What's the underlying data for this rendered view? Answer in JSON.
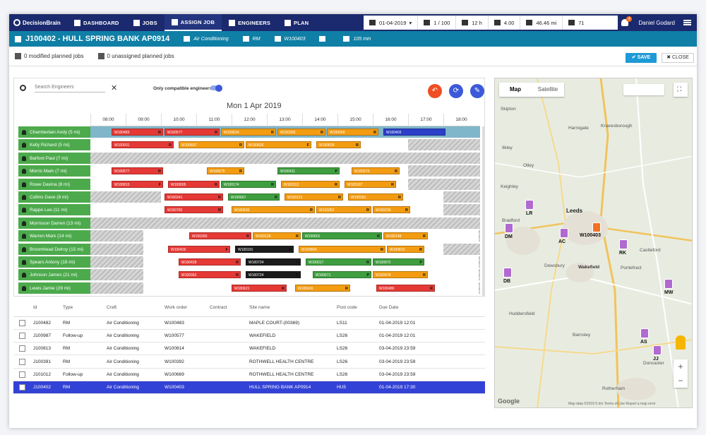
{
  "nav": {
    "logo": "DecisionBrain",
    "items": [
      {
        "label": "DASHBOARD",
        "icon": "grid-icon"
      },
      {
        "label": "JOBS",
        "icon": "wrench-icon"
      },
      {
        "label": "ASSIGN JOB",
        "icon": "person-badge-icon",
        "active": true
      },
      {
        "label": "ENGINEERS",
        "icon": "people-icon"
      },
      {
        "label": "PLAN",
        "icon": "document-icon"
      }
    ],
    "kpis": {
      "date": "01-04-2019",
      "pages": "1 / 100",
      "hours": "12 h",
      "tools": "4.00",
      "distance": "46.46 mi",
      "alerts": "71"
    },
    "notifications": "4",
    "user": "Daniel Godard"
  },
  "job": {
    "title": "J100402 - HULL SPRING BANK AP0914",
    "craft": "Air Conditioning",
    "type": "RM",
    "work_order": "W100403",
    "duration": "105 min"
  },
  "actions": {
    "modified": "0 modified planned jobs",
    "unassigned": "0 unassigned planned jobs",
    "save": "SAVE",
    "close": "CLOSE"
  },
  "gantt": {
    "search_placeholder": "Search Engineers",
    "compatible_label": "Only compatible engineers",
    "date": "Mon 1 Apr 2019",
    "hours": [
      "08:00",
      "09:00",
      "10:00",
      "11:00",
      "12:00",
      "13:00",
      "14:00",
      "15:00",
      "16:00",
      "17:00",
      "18:00"
    ],
    "engineers": [
      "Chamberlain Andy (5 mi)",
      "Kelly Richard (5 mi)",
      "Barfoot Paul (7 mi)",
      "Morris Mark (7 mi)",
      "Rowe Davina (8 mi)",
      "Collins Dave (8 mi)",
      "Rappe Lee (11 mi)",
      "Morrisson Darren (13 mi)",
      "Warren Mark (14 mi)",
      "Broomhead Delroy (15 mi)",
      "Spears Antony (18 mi)",
      "Johnson James (21 mi)",
      "Lewis Jamie (29 mi)"
    ],
    "tasks": [
      [
        {
          "s": 8.1,
          "e": 9.6,
          "c": "red",
          "t": "W100483",
          "k": "R"
        },
        {
          "s": 9.6,
          "e": 11.2,
          "c": "red",
          "t": "W100577",
          "k": "R"
        },
        {
          "s": 11.2,
          "e": 12.8,
          "c": "orange",
          "t": "W100814",
          "k": "R"
        },
        {
          "s": 12.8,
          "e": 14.2,
          "c": "orange",
          "t": "W100392",
          "k": "R"
        },
        {
          "s": 14.2,
          "e": 15.7,
          "c": "orange",
          "t": "W100669",
          "k": "R"
        },
        {
          "s": 15.8,
          "e": 17.6,
          "c": "blue",
          "t": "W100403",
          "k": ""
        }
      ],
      [
        {
          "s": 8.1,
          "e": 9.9,
          "c": "red",
          "t": "W100601",
          "k": "R"
        },
        {
          "s": 10.0,
          "e": 11.9,
          "c": "orange",
          "t": "W100607",
          "k": "R"
        },
        {
          "s": 11.9,
          "e": 13.8,
          "c": "orange",
          "t": "W100826",
          "k": "F"
        },
        {
          "s": 13.9,
          "e": 15.2,
          "c": "orange",
          "t": "W100828",
          "k": "R"
        }
      ],
      [],
      [
        {
          "s": 8.1,
          "e": 9.6,
          "c": "red",
          "t": "W100577",
          "k": "R"
        },
        {
          "s": 10.8,
          "e": 11.9,
          "c": "orange",
          "t": "W100675",
          "k": "R"
        },
        {
          "s": 12.8,
          "e": 14.6,
          "c": "green",
          "t": "W100411",
          "k": "P"
        },
        {
          "s": 14.9,
          "e": 16.3,
          "c": "orange",
          "t": "W100576",
          "k": "R"
        }
      ],
      [
        {
          "s": 8.1,
          "e": 9.6,
          "c": "red",
          "t": "W100815",
          "k": "F"
        },
        {
          "s": 9.7,
          "e": 11.2,
          "c": "red",
          "t": "W100005",
          "k": "R"
        },
        {
          "s": 11.2,
          "e": 12.8,
          "c": "green",
          "t": "W100174",
          "k": "R"
        },
        {
          "s": 12.9,
          "e": 14.6,
          "c": "orange",
          "t": "W100113",
          "k": "R"
        },
        {
          "s": 14.7,
          "e": 16.2,
          "c": "orange",
          "t": "W100187",
          "k": "R"
        }
      ],
      [
        {
          "s": 9.6,
          "e": 11.3,
          "c": "red",
          "t": "W100341",
          "k": "R"
        },
        {
          "s": 11.4,
          "e": 12.9,
          "c": "green",
          "t": "W100667",
          "k": "R"
        },
        {
          "s": 13.0,
          "e": 14.7,
          "c": "orange",
          "t": "W100121",
          "k": "R"
        },
        {
          "s": 14.8,
          "e": 16.4,
          "c": "orange",
          "t": "W100281",
          "k": "R"
        }
      ],
      [
        {
          "s": 9.6,
          "e": 11.3,
          "c": "red",
          "t": "W100782",
          "k": "R"
        },
        {
          "s": 11.5,
          "e": 13.9,
          "c": "orange",
          "t": "W100636",
          "k": "R"
        },
        {
          "s": 13.9,
          "e": 15.5,
          "c": "orange",
          "t": "W101852",
          "k": "R"
        },
        {
          "s": 15.5,
          "e": 16.6,
          "c": "orange",
          "t": "W100236",
          "k": "R"
        }
      ],
      [],
      [
        {
          "s": 10.3,
          "e": 12.1,
          "c": "red",
          "t": "W100260",
          "k": "R"
        },
        {
          "s": 12.1,
          "e": 13.5,
          "c": "orange",
          "t": "W100128",
          "k": "R"
        },
        {
          "s": 13.5,
          "e": 15.8,
          "c": "green",
          "t": "W100601",
          "k": "R"
        },
        {
          "s": 15.8,
          "e": 17.1,
          "c": "orange",
          "t": "W100148",
          "k": "R"
        }
      ],
      [
        {
          "s": 9.7,
          "e": 11.5,
          "c": "red",
          "t": "W100426",
          "k": "F"
        },
        {
          "s": 11.6,
          "e": 13.3,
          "c": "black",
          "t": "W100191",
          "k": "R"
        },
        {
          "s": 13.4,
          "e": 15.9,
          "c": "orange",
          "t": "W100804",
          "k": "R"
        },
        {
          "s": 15.9,
          "e": 17.0,
          "c": "orange",
          "t": "W100810",
          "k": "R"
        }
      ],
      [
        {
          "s": 10.0,
          "e": 11.8,
          "c": "red",
          "t": "W100428",
          "k": "R"
        },
        {
          "s": 11.9,
          "e": 13.5,
          "c": "black",
          "t": "W100724",
          "k": "R"
        },
        {
          "s": 13.6,
          "e": 15.5,
          "c": "green",
          "t": "W100017",
          "k": "R"
        },
        {
          "s": 15.5,
          "e": 17.0,
          "c": "green",
          "t": "W100972",
          "k": "P"
        }
      ],
      [
        {
          "s": 10.0,
          "e": 11.8,
          "c": "red",
          "t": "W100362",
          "k": "R"
        },
        {
          "s": 11.9,
          "e": 13.5,
          "c": "black",
          "t": "W100724",
          "k": "R"
        },
        {
          "s": 13.8,
          "e": 15.5,
          "c": "green",
          "t": "W100671",
          "k": "P"
        },
        {
          "s": 15.5,
          "e": 17.1,
          "c": "orange",
          "t": "W100478",
          "k": "R"
        }
      ],
      [
        {
          "s": 11.5,
          "e": 13.1,
          "c": "red",
          "t": "W100621",
          "k": "R"
        },
        {
          "s": 13.3,
          "e": 14.9,
          "c": "orange",
          "t": "W100416",
          "k": "R"
        },
        {
          "s": 15.6,
          "e": 17.3,
          "c": "red",
          "t": "W100480",
          "k": "R"
        }
      ]
    ]
  },
  "table": {
    "headers": [
      "Id",
      "Type",
      "Craft",
      "Work order",
      "Contract",
      "Site name",
      "Post code",
      "Due Date"
    ],
    "rows": [
      [
        "J100482",
        "RM",
        "Air Conditioning",
        "W100483",
        "",
        "MAPLE COURT-(00369)",
        "LS11",
        "01-04-2019 12:01"
      ],
      [
        "J100987",
        "Follow-up",
        "Air Conditioning",
        "W100577",
        "",
        "WAKEFIELD",
        "LS26",
        "01-04-2019 12:01"
      ],
      [
        "J100813",
        "RM",
        "Air Conditioning",
        "W100814",
        "",
        "WAKEFIELD",
        "LS26",
        "03-04-2019 23:59"
      ],
      [
        "J100391",
        "RM",
        "Air Conditioning",
        "W100392",
        "",
        "ROTHWELL HEALTH CENTRE",
        "LS26",
        "03-04-2019 23:59"
      ],
      [
        "J101012",
        "Follow-up",
        "Air Conditioning",
        "W100669",
        "",
        "ROTHWELL HEALTH CENTRE",
        "LS26",
        "03-04-2019 23:59"
      ],
      [
        "J100402",
        "RM",
        "Air Conditioning",
        "W100403",
        "",
        "HULL SPRING BANK AP0914",
        "HU5",
        "01-04-2019 17:30"
      ]
    ]
  },
  "map": {
    "tabs": [
      "Map",
      "Satellite"
    ],
    "places": [
      "Harrogate",
      "Knaresborough",
      "Leeds",
      "Bradford",
      "Wakefield",
      "Dewsbury",
      "Pontefract",
      "Rotherham",
      "Otley",
      "Ilkley",
      "Skipton",
      "Keighley",
      "Castleford",
      "Huddersfield",
      "Barnsley",
      "Doncaster"
    ],
    "pins": [
      "LR",
      "DM",
      "AC",
      "RK",
      "DB",
      "MW",
      "AS",
      "JJ"
    ],
    "focus": "W100403",
    "google": "Google",
    "attribution": "Map data ©2019   5 km   Terms of Use   Report a map error"
  }
}
